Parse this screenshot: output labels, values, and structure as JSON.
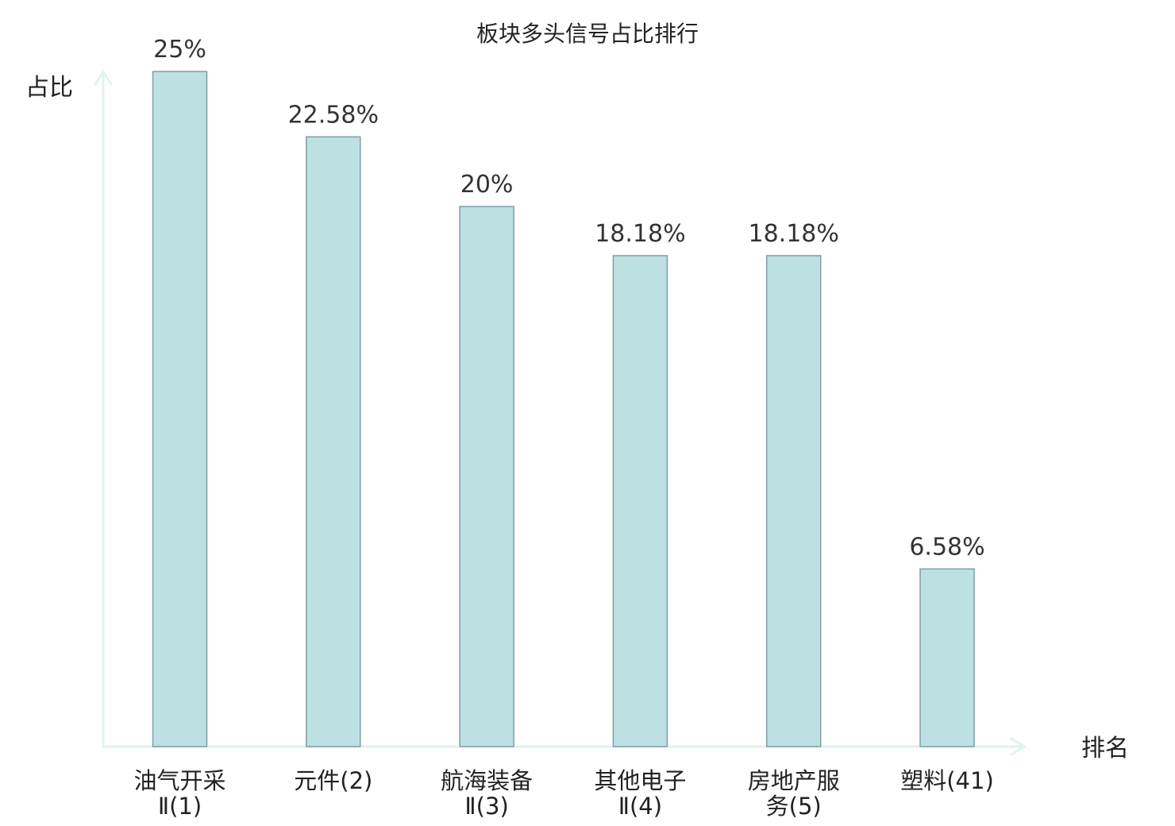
{
  "chart_data": {
    "type": "bar",
    "title": "板块多头信号占比排行",
    "xlabel": "排名",
    "ylabel": "占比",
    "ylim": [
      0,
      25
    ],
    "grid": false,
    "categories": [
      [
        "油气开采",
        "Ⅱ(1)"
      ],
      [
        "元件(2)"
      ],
      [
        "航海装备",
        "Ⅱ(3)"
      ],
      [
        "其他电子",
        "Ⅱ(4)"
      ],
      [
        "房地产服",
        "务(5)"
      ],
      [
        "塑料(41)"
      ]
    ],
    "values": [
      25,
      22.58,
      20,
      18.18,
      18.18,
      6.58
    ],
    "value_labels": [
      "25%",
      "22.58%",
      "20%",
      "18.18%",
      "18.18%",
      "6.58%"
    ],
    "highlight_index": 5,
    "colors": {
      "bar_fill": "#bde0e2",
      "bar_stroke": "#7f9fa2",
      "axis": "#e0f2ef",
      "highlight_text": "#e02020",
      "text": "#222222"
    }
  }
}
